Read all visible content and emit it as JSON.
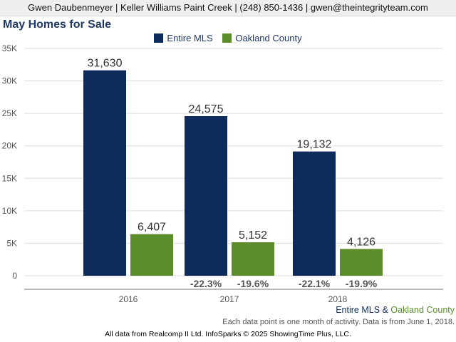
{
  "header": {
    "agent_info": "Gwen Daubenmeyer | Keller Williams Paint Creek | (248) 850-1436 | gwen@theintegrityteam.com"
  },
  "colors": {
    "entire_mls": "#0d2c5c",
    "oakland_county": "#5b8e2b",
    "title": "#1f3864",
    "change_label": "#555555"
  },
  "chart_data": {
    "type": "bar",
    "title": "May Homes for Sale",
    "xlabel": "",
    "ylabel": "",
    "categories": [
      "2016",
      "2017",
      "2018"
    ],
    "ylim": [
      0,
      35000
    ],
    "yticks": [
      0,
      5000,
      10000,
      15000,
      20000,
      25000,
      30000,
      35000
    ],
    "ytick_labels": [
      "0",
      "5K",
      "10K",
      "15K",
      "20K",
      "25K",
      "30K",
      "35K"
    ],
    "grid": true,
    "legend_position": "top-center",
    "series": [
      {
        "name": "Entire MLS",
        "values": [
          31630,
          24575,
          19132
        ],
        "value_labels": [
          "31,630",
          "24,575",
          "19,132"
        ],
        "change_labels": [
          "",
          "-22.3%",
          "-22.1%"
        ]
      },
      {
        "name": "Oakland County",
        "values": [
          6407,
          5152,
          4126
        ],
        "value_labels": [
          "6,407",
          "5,152",
          "4,126"
        ],
        "change_labels": [
          "",
          "-19.6%",
          "-19.9%"
        ]
      }
    ]
  },
  "footer": {
    "legend_first": "Entire MLS",
    "legend_sep": "&",
    "legend_second": "Oakland County",
    "note": "Each data point is one month of activity. Data is from June 1, 2018.",
    "source": "All data from Realcomp II Ltd. InfoSparks © 2025 ShowingTime Plus, LLC."
  }
}
